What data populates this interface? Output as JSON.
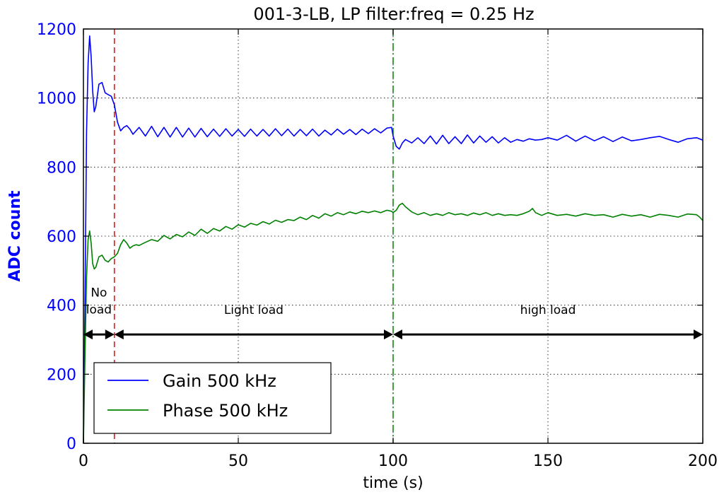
{
  "chart_data": {
    "type": "line",
    "title": "001-3-LB, LP filter:freq = 0.25 Hz",
    "xlabel": "time (s)",
    "ylabel": "ADC count",
    "xlim": [
      0,
      200
    ],
    "ylim": [
      0,
      1200
    ],
    "x_ticks": [
      0,
      50,
      100,
      150,
      200
    ],
    "y_ticks": [
      0,
      200,
      400,
      600,
      800,
      1000,
      1200
    ],
    "x_tick_labels": [
      "0",
      "50",
      "100",
      "150",
      "200"
    ],
    "y_tick_labels": [
      "0",
      "200",
      "400",
      "600",
      "800",
      "1000",
      "1200"
    ],
    "grid": true,
    "legend_position": "bottom-left",
    "colors": {
      "gain": "#0000ff",
      "phase": "#008000",
      "ylabel": "#0000ff",
      "y_ticks": "#0000ff",
      "no_load_line": "#ff0000",
      "load_change_line": "#008000",
      "arrows": "#000000"
    },
    "series": [
      {
        "name": "Gain 500 kHz",
        "color": "#0000ff",
        "x": [
          0,
          0.5,
          1,
          1.5,
          2,
          2.5,
          3,
          3.5,
          4,
          5,
          6,
          7,
          8,
          9,
          10,
          11,
          12,
          13,
          14,
          15,
          16,
          18,
          20,
          22,
          24,
          26,
          28,
          30,
          32,
          34,
          36,
          38,
          40,
          42,
          44,
          46,
          48,
          50,
          52,
          54,
          56,
          58,
          60,
          62,
          64,
          66,
          68,
          70,
          72,
          74,
          76,
          78,
          80,
          82,
          84,
          86,
          88,
          90,
          92,
          94,
          96,
          98,
          99.5,
          100,
          101,
          102,
          103,
          104,
          106,
          108,
          110,
          112,
          114,
          116,
          118,
          120,
          122,
          124,
          126,
          128,
          130,
          132,
          134,
          136,
          138,
          140,
          142,
          144,
          146,
          148,
          150,
          153,
          156,
          159,
          162,
          165,
          168,
          171,
          174,
          177,
          180,
          183,
          186,
          189,
          192,
          195,
          198,
          200
        ],
        "values": [
          0,
          400,
          900,
          1100,
          1180,
          1120,
          1020,
          960,
          975,
          1040,
          1045,
          1015,
          1010,
          1005,
          980,
          930,
          905,
          915,
          920,
          910,
          895,
          915,
          890,
          918,
          888,
          915,
          887,
          915,
          887,
          913,
          887,
          912,
          888,
          910,
          889,
          911,
          890,
          909,
          889,
          910,
          890,
          909,
          890,
          911,
          891,
          910,
          890,
          909,
          891,
          910,
          890,
          907,
          893,
          910,
          895,
          909,
          894,
          910,
          897,
          911,
          899,
          913,
          915,
          890,
          860,
          852,
          870,
          880,
          870,
          885,
          868,
          890,
          867,
          892,
          868,
          888,
          868,
          893,
          870,
          890,
          872,
          888,
          870,
          885,
          872,
          880,
          875,
          882,
          878,
          880,
          885,
          878,
          892,
          875,
          890,
          876,
          888,
          874,
          887,
          876,
          880,
          885,
          889,
          880,
          872,
          882,
          885,
          878
        ]
      },
      {
        "name": "Phase 500 kHz",
        "color": "#008000",
        "x": [
          0,
          0.5,
          1,
          1.5,
          2,
          2.5,
          3,
          3.5,
          4,
          5,
          6,
          7,
          8,
          9,
          10,
          11,
          12,
          13,
          14,
          15,
          16,
          17,
          18,
          20,
          22,
          24,
          26,
          28,
          30,
          32,
          34,
          36,
          38,
          40,
          42,
          44,
          46,
          48,
          50,
          52,
          54,
          56,
          58,
          60,
          62,
          64,
          66,
          68,
          70,
          72,
          74,
          76,
          78,
          80,
          82,
          84,
          86,
          88,
          90,
          92,
          94,
          96,
          98,
          99.5,
          100,
          101,
          102,
          103,
          104,
          106,
          108,
          110,
          112,
          114,
          116,
          118,
          120,
          122,
          124,
          126,
          128,
          130,
          132,
          134,
          136,
          138,
          140,
          142,
          144,
          145,
          146,
          148,
          150,
          153,
          156,
          159,
          162,
          165,
          168,
          171,
          174,
          177,
          180,
          183,
          186,
          189,
          192,
          195,
          198,
          199,
          200
        ],
        "values": [
          0,
          250,
          480,
          590,
          615,
          580,
          520,
          505,
          510,
          540,
          545,
          530,
          525,
          535,
          540,
          550,
          575,
          590,
          580,
          565,
          572,
          575,
          573,
          582,
          590,
          585,
          602,
          592,
          605,
          598,
          612,
          602,
          620,
          608,
          622,
          615,
          628,
          620,
          633,
          626,
          637,
          632,
          642,
          635,
          646,
          640,
          648,
          645,
          655,
          648,
          660,
          652,
          665,
          658,
          668,
          662,
          670,
          665,
          672,
          668,
          673,
          668,
          675,
          672,
          668,
          675,
          690,
          695,
          685,
          670,
          662,
          668,
          660,
          665,
          660,
          668,
          662,
          665,
          660,
          667,
          662,
          668,
          660,
          665,
          660,
          662,
          660,
          665,
          672,
          680,
          668,
          660,
          668,
          660,
          663,
          658,
          665,
          660,
          662,
          655,
          663,
          658,
          662,
          655,
          663,
          660,
          655,
          664,
          662,
          655,
          645
        ]
      }
    ],
    "vlines": [
      {
        "name": "no-load-boundary",
        "x": 10,
        "color": "#ff0000",
        "style": "dashed"
      },
      {
        "name": "load-change-boundary",
        "x": 100,
        "color": "#008000",
        "style": "dashdot"
      }
    ],
    "annotations": [
      {
        "name": "no-load",
        "lines": [
          "No",
          "load"
        ],
        "x": 5,
        "y": 425,
        "arrow_from": 0,
        "arrow_to": 10,
        "arrow_y": 315
      },
      {
        "name": "light-load",
        "lines": [
          "Light load"
        ],
        "x": 55,
        "y": 375,
        "arrow_from": 10,
        "arrow_to": 100,
        "arrow_y": 315
      },
      {
        "name": "high-load",
        "lines": [
          "high load"
        ],
        "x": 150,
        "y": 375,
        "arrow_from": 100,
        "arrow_to": 200,
        "arrow_y": 315
      }
    ]
  }
}
